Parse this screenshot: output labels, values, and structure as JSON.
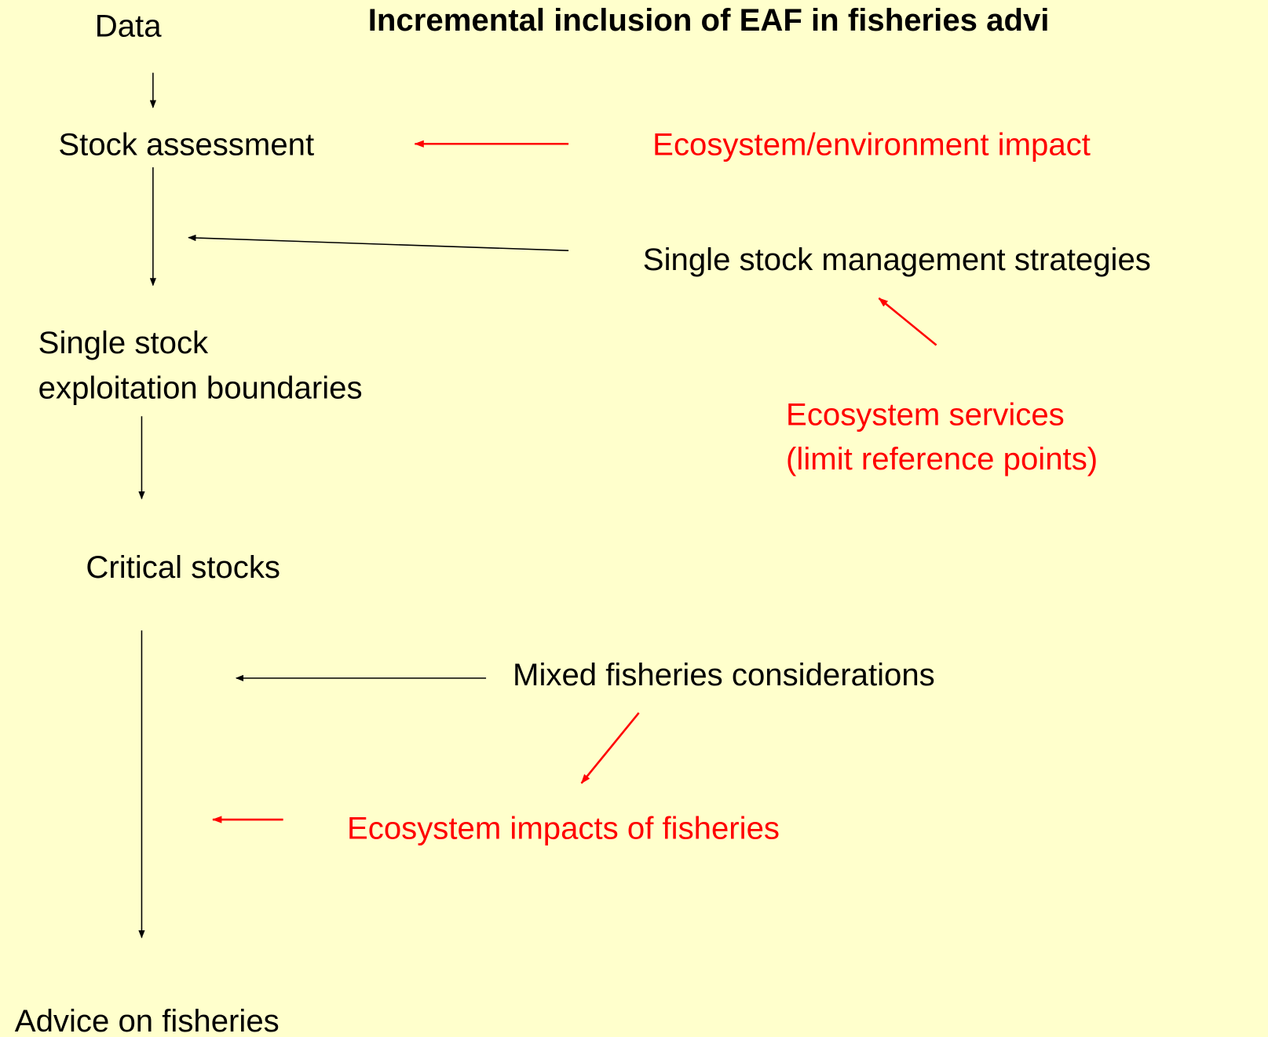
{
  "title": "Incremental inclusion of EAF in fisheries advi",
  "nodes": [
    {
      "label": "Data"
    },
    {
      "label": "Stock assessment"
    },
    {
      "label": "Single stock"
    },
    {
      "label": "exploitation boundaries"
    },
    {
      "label": "Critical stocks"
    },
    {
      "label": "Advice on fisheries"
    },
    {
      "label": "Ecosystem/environment impact"
    },
    {
      "label": "Single stock management strategies"
    },
    {
      "label": "Ecosystem services"
    },
    {
      "label": "(limit reference points)"
    },
    {
      "label": "Mixed fisheries considerations"
    },
    {
      "label": "Ecosystem impacts of fisheries"
    }
  ]
}
